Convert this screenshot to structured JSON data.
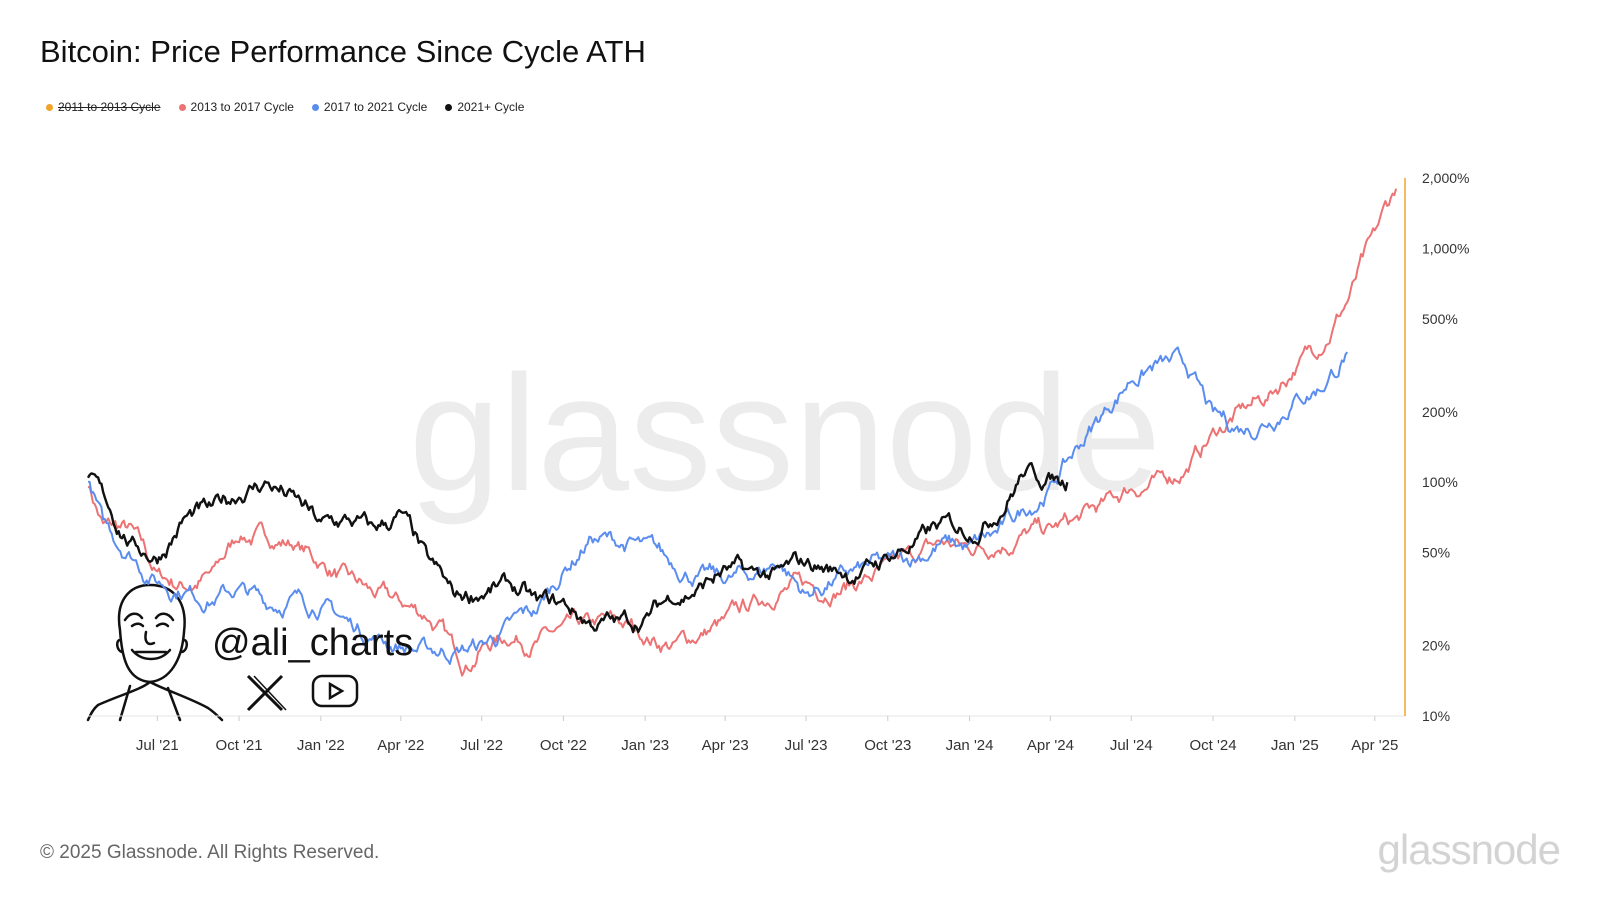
{
  "title": "Bitcoin: Price Performance Since Cycle ATH",
  "legend": [
    {
      "label": "2011 to 2013 Cycle",
      "color": "#f2a32b",
      "hidden": true
    },
    {
      "label": "2013 to 2017 Cycle",
      "color": "#ec7273",
      "hidden": false
    },
    {
      "label": "2017 to 2021 Cycle",
      "color": "#5b8def",
      "hidden": false
    },
    {
      "label": "2021+ Cycle",
      "color": "#111111",
      "hidden": false
    }
  ],
  "watermark": "glassnode",
  "footer": {
    "copyright": "© 2025 Glassnode. All Rights Reserved.",
    "logo": "glassnode"
  },
  "overlay": {
    "handle": "@ali_charts",
    "icons": [
      "x-logo-icon",
      "youtube-play-icon",
      "caricature-avatar"
    ]
  },
  "chart_data": {
    "type": "line",
    "title": "Bitcoin: Price Performance Since Cycle ATH",
    "xlabel": "",
    "ylabel": "",
    "y_scale": "log",
    "ylim": [
      10,
      2000
    ],
    "xlim": [
      "2021-04-14",
      "2025-05-05"
    ],
    "x_ticks": [
      "Jul '21",
      "Oct '21",
      "Jan '22",
      "Apr '22",
      "Jul '22",
      "Oct '22",
      "Jan '23",
      "Apr '23",
      "Jul '23",
      "Oct '23",
      "Jan '24",
      "Apr '24",
      "Jul '24",
      "Oct '24",
      "Jan '25",
      "Apr '25"
    ],
    "y_ticks": [
      {
        "value": 10,
        "label": "10%"
      },
      {
        "value": 20,
        "label": "20%"
      },
      {
        "value": 50,
        "label": "50%"
      },
      {
        "value": 100,
        "label": "100%"
      },
      {
        "value": 200,
        "label": "200%"
      },
      {
        "value": 500,
        "label": "500%"
      },
      {
        "value": 1000,
        "label": "1,000%"
      },
      {
        "value": 2000,
        "label": "2,000%"
      }
    ],
    "grid": false,
    "legend_position": "top-left",
    "series": [
      {
        "name": "2013 to 2017 Cycle",
        "color": "#ec7273",
        "points": [
          [
            "2021-04-14",
            100
          ],
          [
            "2021-05-01",
            65
          ],
          [
            "2021-06-01",
            62
          ],
          [
            "2021-07-01",
            40
          ],
          [
            "2021-08-01",
            36
          ],
          [
            "2021-09-01",
            40
          ],
          [
            "2021-10-01",
            60
          ],
          [
            "2021-11-01",
            58
          ],
          [
            "2021-12-01",
            55
          ],
          [
            "2022-01-01",
            45
          ],
          [
            "2022-02-01",
            38
          ],
          [
            "2022-03-01",
            33
          ],
          [
            "2022-04-01",
            30
          ],
          [
            "2022-05-01",
            27
          ],
          [
            "2022-06-01",
            19
          ],
          [
            "2022-06-15",
            17
          ],
          [
            "2022-07-01",
            20
          ],
          [
            "2022-08-01",
            22
          ],
          [
            "2022-09-01",
            21
          ],
          [
            "2022-10-01",
            23
          ],
          [
            "2022-11-01",
            24
          ],
          [
            "2022-12-01",
            25
          ],
          [
            "2023-01-01",
            22
          ],
          [
            "2023-02-01",
            20
          ],
          [
            "2023-03-01",
            22
          ],
          [
            "2023-04-01",
            25
          ],
          [
            "2023-05-01",
            30
          ],
          [
            "2023-06-01",
            35
          ],
          [
            "2023-07-01",
            36
          ],
          [
            "2023-08-01",
            35
          ],
          [
            "2023-09-01",
            38
          ],
          [
            "2023-10-01",
            42
          ],
          [
            "2023-11-01",
            48
          ],
          [
            "2023-12-01",
            55
          ],
          [
            "2024-01-01",
            52
          ],
          [
            "2024-02-01",
            55
          ],
          [
            "2024-03-01",
            60
          ],
          [
            "2024-04-01",
            62
          ],
          [
            "2024-05-01",
            68
          ],
          [
            "2024-06-01",
            80
          ],
          [
            "2024-07-01",
            95
          ],
          [
            "2024-08-01",
            100
          ],
          [
            "2024-09-01",
            115
          ],
          [
            "2024-10-01",
            160
          ],
          [
            "2024-11-01",
            200
          ],
          [
            "2024-12-01",
            230
          ],
          [
            "2025-01-01",
            310
          ],
          [
            "2025-02-01",
            400
          ],
          [
            "2025-03-01",
            600
          ],
          [
            "2025-04-01",
            1100
          ],
          [
            "2025-04-25",
            1800
          ]
        ]
      },
      {
        "name": "2017 to 2021 Cycle",
        "color": "#5b8def",
        "points": [
          [
            "2021-04-14",
            100
          ],
          [
            "2021-05-01",
            65
          ],
          [
            "2021-06-01",
            50
          ],
          [
            "2021-07-01",
            38
          ],
          [
            "2021-08-01",
            35
          ],
          [
            "2021-09-01",
            32
          ],
          [
            "2021-10-01",
            35
          ],
          [
            "2021-11-01",
            30
          ],
          [
            "2021-12-01",
            32
          ],
          [
            "2022-01-01",
            30
          ],
          [
            "2022-02-01",
            25
          ],
          [
            "2022-03-01",
            22
          ],
          [
            "2022-04-01",
            20
          ],
          [
            "2022-05-01",
            19
          ],
          [
            "2022-06-01",
            19
          ],
          [
            "2022-07-01",
            20
          ],
          [
            "2022-08-01",
            24
          ],
          [
            "2022-09-01",
            28
          ],
          [
            "2022-10-01",
            42
          ],
          [
            "2022-11-01",
            58
          ],
          [
            "2022-12-01",
            55
          ],
          [
            "2023-01-01",
            52
          ],
          [
            "2023-02-01",
            45
          ],
          [
            "2023-03-01",
            40
          ],
          [
            "2023-04-01",
            38
          ],
          [
            "2023-05-01",
            40
          ],
          [
            "2023-06-01",
            46
          ],
          [
            "2023-07-01",
            33
          ],
          [
            "2023-08-01",
            38
          ],
          [
            "2023-09-01",
            42
          ],
          [
            "2023-10-01",
            45
          ],
          [
            "2023-11-01",
            48
          ],
          [
            "2023-12-01",
            55
          ],
          [
            "2024-01-01",
            52
          ],
          [
            "2024-02-01",
            60
          ],
          [
            "2024-03-01",
            75
          ],
          [
            "2024-04-01",
            95
          ],
          [
            "2024-05-01",
            140
          ],
          [
            "2024-06-01",
            200
          ],
          [
            "2024-07-01",
            280
          ],
          [
            "2024-08-01",
            320
          ],
          [
            "2024-09-01",
            310
          ],
          [
            "2024-10-01",
            190
          ],
          [
            "2024-11-01",
            170
          ],
          [
            "2024-12-01",
            185
          ],
          [
            "2025-01-01",
            230
          ],
          [
            "2025-02-01",
            260
          ],
          [
            "2025-03-01",
            360
          ]
        ]
      },
      {
        "name": "2021+ Cycle",
        "color": "#111111",
        "points": [
          [
            "2021-04-14",
            100
          ],
          [
            "2021-05-01",
            85
          ],
          [
            "2021-06-01",
            55
          ],
          [
            "2021-07-01",
            48
          ],
          [
            "2021-08-01",
            70
          ],
          [
            "2021-09-01",
            75
          ],
          [
            "2021-10-01",
            90
          ],
          [
            "2021-11-01",
            100
          ],
          [
            "2021-12-01",
            85
          ],
          [
            "2022-01-01",
            65
          ],
          [
            "2022-02-01",
            68
          ],
          [
            "2022-03-01",
            62
          ],
          [
            "2022-04-01",
            72
          ],
          [
            "2022-05-01",
            45
          ],
          [
            "2022-06-01",
            32
          ],
          [
            "2022-07-01",
            34
          ],
          [
            "2022-08-01",
            36
          ],
          [
            "2022-09-01",
            30
          ],
          [
            "2022-10-01",
            30
          ],
          [
            "2022-11-01",
            25
          ],
          [
            "2022-12-01",
            25
          ],
          [
            "2023-01-01",
            26
          ],
          [
            "2023-02-01",
            33
          ],
          [
            "2023-03-01",
            35
          ],
          [
            "2023-04-01",
            42
          ],
          [
            "2023-05-01",
            40
          ],
          [
            "2023-06-01",
            40
          ],
          [
            "2023-07-01",
            45
          ],
          [
            "2023-08-01",
            42
          ],
          [
            "2023-09-01",
            41
          ],
          [
            "2023-10-01",
            48
          ],
          [
            "2023-11-01",
            55
          ],
          [
            "2023-12-01",
            65
          ],
          [
            "2024-01-01",
            62
          ],
          [
            "2024-02-01",
            75
          ],
          [
            "2024-03-01",
            110
          ],
          [
            "2024-04-01",
            105
          ],
          [
            "2024-04-20",
            100
          ]
        ]
      }
    ]
  }
}
